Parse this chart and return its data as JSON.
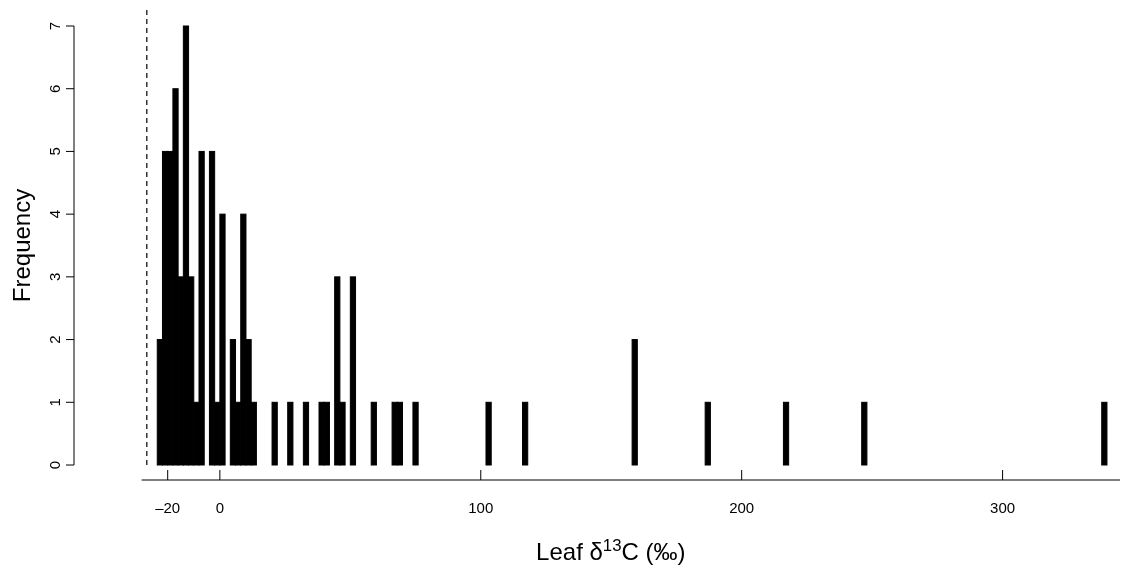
{
  "chart_data": {
    "type": "histogram",
    "xlabel": "Leaf δ$^{13}$C (‰)",
    "ylabel": "Frequency",
    "color": "#000000",
    "bins": [
      -24,
      -22,
      -20,
      -18,
      -16,
      -14,
      -12,
      -10,
      -8,
      -6,
      -4,
      -2,
      0,
      2,
      4,
      6,
      8,
      10,
      12,
      14,
      16,
      18,
      20,
      22,
      24,
      26,
      28,
      30,
      32,
      34,
      36,
      38,
      40,
      42,
      44,
      46,
      48,
      50,
      52,
      54,
      56,
      58,
      60,
      62,
      64,
      66,
      68,
      70,
      72,
      74,
      76,
      78,
      80,
      82,
      84,
      86,
      88,
      90,
      92,
      94,
      96,
      98,
      100,
      102,
      104,
      106,
      108,
      110,
      112,
      114,
      116,
      118,
      120,
      122,
      124,
      126,
      128,
      130,
      132,
      134,
      136,
      138,
      140,
      142,
      144,
      146,
      148,
      150,
      152,
      154,
      156,
      158,
      160,
      162,
      164,
      166,
      168,
      170,
      172,
      174,
      176,
      178,
      180,
      182,
      184,
      186,
      188,
      190,
      192,
      194,
      196,
      198,
      200,
      202,
      204,
      206,
      208,
      210,
      212,
      214,
      216,
      218,
      220,
      222,
      224,
      226,
      228,
      230,
      232,
      234,
      236,
      238,
      240,
      242,
      244,
      246,
      248,
      250,
      252,
      254,
      256,
      258,
      260,
      262,
      264,
      266,
      268,
      270,
      272,
      274,
      276,
      278,
      280,
      282,
      284,
      286,
      288,
      290,
      292,
      294,
      296,
      298,
      300,
      302,
      304,
      306,
      308,
      310,
      312,
      314,
      316,
      318,
      320,
      322,
      324,
      326,
      328,
      330,
      332,
      334,
      336,
      338,
      340
    ],
    "values": [
      2,
      5,
      5,
      6,
      3,
      7,
      3,
      1,
      5,
      0,
      5,
      1,
      4,
      0,
      2,
      1,
      4,
      2,
      1,
      0,
      0,
      0,
      1,
      0,
      0,
      1,
      0,
      0,
      1,
      0,
      0,
      1,
      1,
      0,
      3,
      1,
      0,
      3,
      0,
      0,
      0,
      1,
      0,
      0,
      0,
      1,
      1,
      0,
      0,
      1,
      0,
      0,
      0,
      0,
      0,
      0,
      0,
      0,
      0,
      0,
      0,
      0,
      0,
      1,
      0,
      0,
      0,
      0,
      0,
      0,
      1,
      0,
      0,
      0,
      0,
      0,
      0,
      0,
      0,
      0,
      0,
      0,
      0,
      0,
      0,
      0,
      0,
      0,
      0,
      0,
      0,
      2,
      0,
      0,
      0,
      0,
      0,
      0,
      0,
      0,
      0,
      0,
      0,
      0,
      0,
      1,
      0,
      0,
      0,
      0,
      0,
      0,
      0,
      0,
      0,
      0,
      0,
      0,
      0,
      0,
      1,
      0,
      0,
      0,
      0,
      0,
      0,
      0,
      0,
      0,
      0,
      0,
      0,
      0,
      0,
      1,
      0,
      0,
      0,
      0,
      0,
      0,
      0,
      0,
      0,
      0,
      0,
      0,
      0,
      0,
      0,
      0,
      0,
      0,
      0,
      0,
      0,
      0,
      0,
      0,
      0,
      0,
      0,
      0,
      0,
      0,
      0,
      0,
      0,
      0,
      0,
      0,
      0,
      0,
      0,
      0,
      0,
      0,
      0,
      0,
      0,
      1
    ],
    "xlim": [
      -30,
      345
    ],
    "ylim": [
      0,
      7
    ],
    "xticks": [
      {
        "value": -20,
        "label": "–20"
      },
      0,
      100,
      200,
      300
    ],
    "yticks": [
      0,
      1,
      2,
      3,
      4,
      5,
      6,
      7
    ],
    "ref_lines": [
      {
        "axis": "x",
        "value": -28,
        "line_style": "dashed"
      }
    ]
  }
}
